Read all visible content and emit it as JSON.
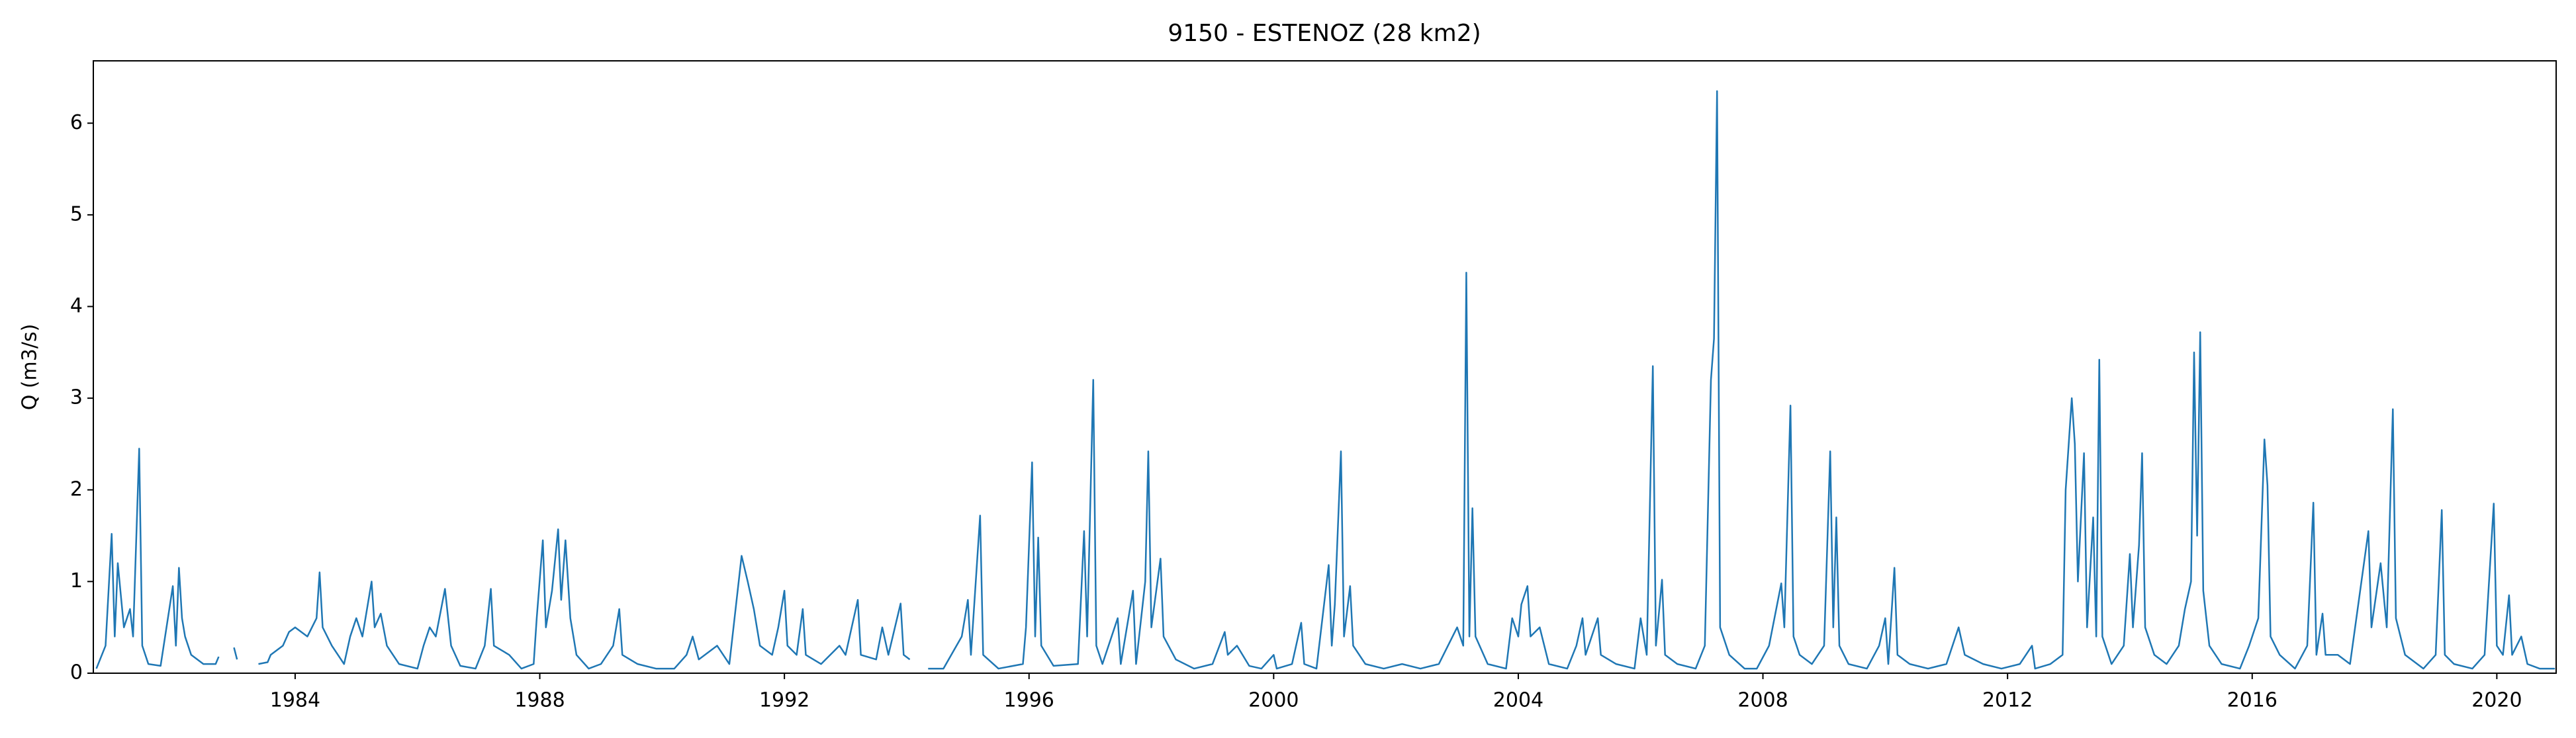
{
  "chart_data": {
    "type": "line",
    "title": "9150 - ESTENOZ (28 km2)",
    "y_label": "Q (m3/s)",
    "xlim": [
      1980.7,
      2020.97
    ],
    "ylim": [
      0,
      6.68
    ],
    "xticks": [
      1984,
      1988,
      1992,
      1996,
      2000,
      2004,
      2008,
      2012,
      2016,
      2020
    ],
    "yticks": [
      0,
      1,
      2,
      3,
      4,
      5,
      6
    ],
    "grid": false,
    "x": [
      1980.75,
      1980.9,
      1981.0,
      1981.05,
      1981.1,
      1981.2,
      1981.3,
      1981.35,
      1981.45,
      1981.5,
      1981.6,
      1981.8,
      1982.0,
      1982.05,
      1982.1,
      1982.15,
      1982.2,
      1982.3,
      1982.5,
      1982.7,
      1982.75,
      1982.85,
      1983.0,
      1983.05,
      1983.25,
      1983.4,
      1983.55,
      1983.6,
      1983.8,
      1983.9,
      1984.0,
      1984.2,
      1984.35,
      1984.4,
      1984.45,
      1984.6,
      1984.8,
      1984.9,
      1985.0,
      1985.1,
      1985.25,
      1985.3,
      1985.4,
      1985.5,
      1985.7,
      1986.0,
      1986.1,
      1986.2,
      1986.3,
      1986.45,
      1986.55,
      1986.7,
      1986.95,
      1987.1,
      1987.2,
      1987.25,
      1987.5,
      1987.7,
      1987.9,
      1987.95,
      1988.05,
      1988.1,
      1988.2,
      1988.3,
      1988.35,
      1988.42,
      1988.5,
      1988.6,
      1988.8,
      1989.0,
      1989.2,
      1989.3,
      1989.35,
      1989.6,
      1989.9,
      1990.2,
      1990.4,
      1990.5,
      1990.6,
      1990.9,
      1991.0,
      1991.1,
      1991.3,
      1991.4,
      1991.5,
      1991.6,
      1991.8,
      1991.9,
      1992.0,
      1992.05,
      1992.2,
      1992.3,
      1992.35,
      1992.6,
      1992.9,
      1993.0,
      1993.2,
      1993.25,
      1993.5,
      1993.6,
      1993.7,
      1993.9,
      1993.95,
      1994.05,
      1994.2,
      1994.35,
      1994.6,
      1994.9,
      1995.0,
      1995.05,
      1995.2,
      1995.25,
      1995.5,
      1995.9,
      1995.95,
      1996.05,
      1996.1,
      1996.15,
      1996.2,
      1996.4,
      1996.8,
      1996.9,
      1996.95,
      1997.05,
      1997.1,
      1997.2,
      1997.45,
      1997.5,
      1997.7,
      1997.75,
      1997.9,
      1997.95,
      1998.0,
      1998.15,
      1998.2,
      1998.4,
      1998.7,
      1999.0,
      1999.2,
      1999.25,
      1999.4,
      1999.6,
      1999.8,
      2000.0,
      2000.05,
      2000.3,
      2000.45,
      2000.5,
      2000.7,
      2000.9,
      2000.95,
      2001.0,
      2001.1,
      2001.15,
      2001.25,
      2001.3,
      2001.5,
      2001.8,
      2002.1,
      2002.4,
      2002.7,
      2003.0,
      2003.1,
      2003.15,
      2003.2,
      2003.25,
      2003.3,
      2003.5,
      2003.8,
      2003.9,
      2004.0,
      2004.05,
      2004.15,
      2004.2,
      2004.35,
      2004.5,
      2004.8,
      2004.95,
      2005.05,
      2005.1,
      2005.3,
      2005.35,
      2005.6,
      2005.9,
      2006.0,
      2006.1,
      2006.2,
      2006.25,
      2006.35,
      2006.4,
      2006.6,
      2006.9,
      2007.05,
      2007.15,
      2007.2,
      2007.25,
      2007.3,
      2007.45,
      2007.7,
      2007.9,
      2008.1,
      2008.3,
      2008.35,
      2008.45,
      2008.5,
      2008.6,
      2008.8,
      2009.0,
      2009.1,
      2009.15,
      2009.2,
      2009.25,
      2009.4,
      2009.7,
      2009.9,
      2010.0,
      2010.05,
      2010.15,
      2010.2,
      2010.4,
      2010.7,
      2011.0,
      2011.2,
      2011.3,
      2011.6,
      2011.9,
      2012.2,
      2012.4,
      2012.45,
      2012.7,
      2012.9,
      2012.95,
      2013.05,
      2013.1,
      2013.15,
      2013.25,
      2013.3,
      2013.4,
      2013.45,
      2013.5,
      2013.55,
      2013.7,
      2013.9,
      2014.0,
      2014.05,
      2014.15,
      2014.2,
      2014.25,
      2014.4,
      2014.6,
      2014.8,
      2014.9,
      2015.0,
      2015.05,
      2015.1,
      2015.15,
      2015.2,
      2015.3,
      2015.5,
      2015.8,
      2015.95,
      2016.1,
      2016.2,
      2016.25,
      2016.3,
      2016.45,
      2016.7,
      2016.9,
      2017.0,
      2017.05,
      2017.15,
      2017.2,
      2017.4,
      2017.6,
      2017.9,
      2017.95,
      2018.1,
      2018.2,
      2018.3,
      2018.35,
      2018.5,
      2018.8,
      2019.0,
      2019.1,
      2019.15,
      2019.3,
      2019.6,
      2019.8,
      2019.95,
      2020.0,
      2020.1,
      2020.2,
      2020.25,
      2020.4,
      2020.5,
      2020.7,
      2020.95
    ],
    "series": [
      {
        "color": "#1f77b4",
        "values": [
          0.05,
          0.3,
          1.52,
          0.4,
          1.2,
          0.5,
          0.7,
          0.4,
          2.45,
          0.3,
          0.1,
          0.08,
          0.95,
          0.3,
          1.15,
          0.6,
          0.4,
          0.2,
          0.1,
          0.1,
          0.18,
          null,
          0.28,
          0.15,
          null,
          0.1,
          0.12,
          0.2,
          0.3,
          0.45,
          0.5,
          0.4,
          0.6,
          1.1,
          0.5,
          0.3,
          0.1,
          0.4,
          0.6,
          0.4,
          1.0,
          0.5,
          0.65,
          0.3,
          0.1,
          0.05,
          0.3,
          0.5,
          0.4,
          0.92,
          0.3,
          0.08,
          0.05,
          0.3,
          0.92,
          0.3,
          0.2,
          0.05,
          0.1,
          0.6,
          1.45,
          0.5,
          0.9,
          1.57,
          0.8,
          1.45,
          0.6,
          0.2,
          0.05,
          0.1,
          0.3,
          0.7,
          0.2,
          0.1,
          0.05,
          0.05,
          0.2,
          0.4,
          0.15,
          0.3,
          0.2,
          0.1,
          1.28,
          1.0,
          0.7,
          0.3,
          0.2,
          0.5,
          0.9,
          0.3,
          0.2,
          0.7,
          0.2,
          0.1,
          0.3,
          0.2,
          0.8,
          0.2,
          0.15,
          0.5,
          0.2,
          0.76,
          0.2,
          0.15,
          null,
          0.05,
          0.05,
          0.4,
          0.8,
          0.2,
          1.72,
          0.2,
          0.05,
          0.1,
          0.5,
          2.3,
          0.4,
          1.48,
          0.3,
          0.08,
          0.1,
          1.55,
          0.4,
          3.2,
          0.3,
          0.1,
          0.6,
          0.1,
          0.9,
          0.1,
          1.0,
          2.42,
          0.5,
          1.25,
          0.4,
          0.15,
          0.05,
          0.1,
          0.45,
          0.2,
          0.3,
          0.08,
          0.05,
          0.2,
          0.05,
          0.1,
          0.55,
          0.1,
          0.05,
          1.18,
          0.3,
          0.75,
          2.42,
          0.4,
          0.95,
          0.3,
          0.1,
          0.05,
          0.1,
          0.05,
          0.1,
          0.5,
          0.3,
          4.37,
          0.4,
          1.8,
          0.4,
          0.1,
          0.05,
          0.6,
          0.4,
          0.75,
          0.95,
          0.4,
          0.5,
          0.1,
          0.05,
          0.3,
          0.6,
          0.2,
          0.6,
          0.2,
          0.1,
          0.05,
          0.6,
          0.2,
          3.35,
          0.3,
          1.02,
          0.2,
          0.1,
          0.05,
          0.3,
          3.2,
          3.65,
          6.35,
          0.5,
          0.2,
          0.05,
          0.05,
          0.3,
          0.98,
          0.5,
          2.92,
          0.4,
          0.2,
          0.1,
          0.3,
          2.42,
          0.5,
          1.7,
          0.3,
          0.1,
          0.05,
          0.3,
          0.6,
          0.1,
          1.15,
          0.2,
          0.1,
          0.05,
          0.1,
          0.5,
          0.2,
          0.1,
          0.05,
          0.1,
          0.3,
          0.05,
          0.1,
          0.2,
          2.0,
          3.0,
          2.5,
          1.0,
          2.4,
          0.5,
          1.7,
          0.4,
          3.42,
          0.4,
          0.1,
          0.3,
          1.3,
          0.5,
          1.4,
          2.4,
          0.5,
          0.2,
          0.1,
          0.3,
          0.7,
          1.0,
          3.5,
          1.5,
          3.72,
          0.9,
          0.3,
          0.1,
          0.05,
          0.3,
          0.6,
          2.55,
          2.05,
          0.4,
          0.2,
          0.05,
          0.3,
          1.86,
          0.2,
          0.65,
          0.2,
          0.2,
          0.1,
          1.55,
          0.5,
          1.2,
          0.5,
          2.88,
          0.6,
          0.2,
          0.05,
          0.2,
          1.78,
          0.2,
          0.1,
          0.05,
          0.2,
          1.85,
          0.3,
          0.2,
          0.85,
          0.2,
          0.4,
          0.1,
          0.05,
          0.05
        ]
      }
    ]
  }
}
